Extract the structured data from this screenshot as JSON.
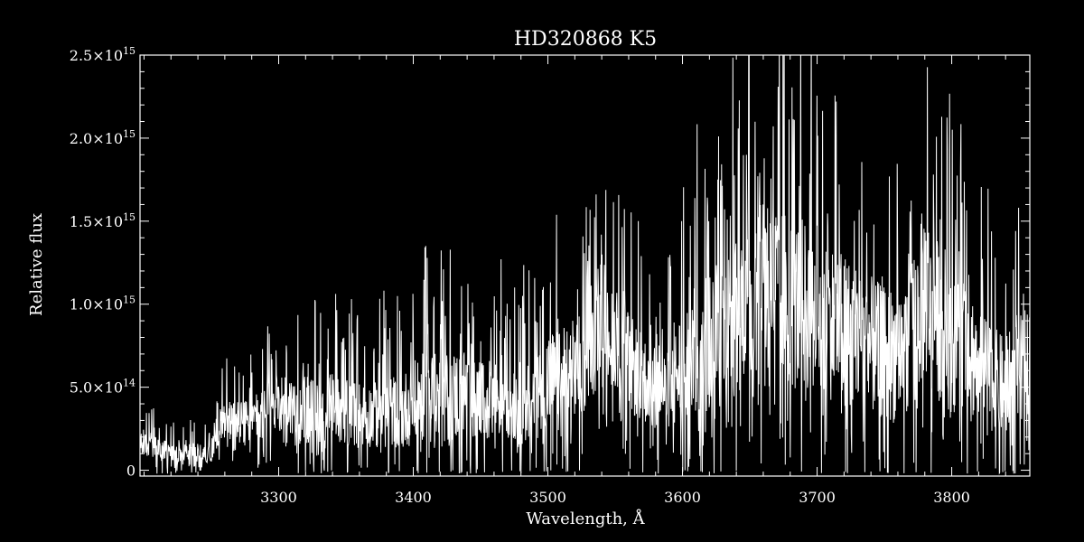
{
  "chart_data": {
    "type": "line",
    "title": "HD320868  K5",
    "xlabel": "Wavelength, Å",
    "ylabel": "Relative flux",
    "xlim": [
      3197,
      3858
    ],
    "ylim": [
      -35000000000000.0,
      2500000000000000.0
    ],
    "x_ticks": [
      {
        "value": 3300,
        "label": "3300"
      },
      {
        "value": 3400,
        "label": "3400"
      },
      {
        "value": 3500,
        "label": "3500"
      },
      {
        "value": 3600,
        "label": "3600"
      },
      {
        "value": 3700,
        "label": "3700"
      },
      {
        "value": 3800,
        "label": "3800"
      }
    ],
    "y_ticks": [
      {
        "value": 0,
        "mantissa": "0",
        "exp": ""
      },
      {
        "value": 500000000000000.0,
        "mantissa": "5.0×10",
        "exp": "14"
      },
      {
        "value": 1000000000000000.0,
        "mantissa": "1.0×10",
        "exp": "15"
      },
      {
        "value": 1500000000000000.0,
        "mantissa": "1.5×10",
        "exp": "15"
      },
      {
        "value": 2000000000000000.0,
        "mantissa": "2.0×10",
        "exp": "15"
      },
      {
        "value": 2500000000000000.0,
        "mantissa": "2.5×10",
        "exp": "15"
      }
    ],
    "grid": false,
    "legend": "none",
    "line_color": "#ffffff",
    "background": "#000000",
    "series": [
      {
        "x": [
          3200,
          3210,
          3220,
          3230,
          3240,
          3250,
          3255,
          3260,
          3270,
          3280,
          3290,
          3300,
          3310,
          3320,
          3330,
          3340,
          3350,
          3360,
          3370,
          3380,
          3390,
          3400,
          3410,
          3420,
          3430,
          3440,
          3450,
          3460,
          3470,
          3480,
          3490,
          3500,
          3510,
          3520,
          3530,
          3540,
          3550,
          3560,
          3570,
          3580,
          3590,
          3600,
          3610,
          3620,
          3630,
          3640,
          3650,
          3660,
          3670,
          3680,
          3690,
          3700,
          3710,
          3720,
          3730,
          3740,
          3750,
          3760,
          3770,
          3780,
          3790,
          3800,
          3810,
          3820,
          3830,
          3840,
          3850,
          3858
        ],
        "y": [
          150000000000000.0,
          130000000000000.0,
          100000000000000.0,
          110000000000000.0,
          100000000000000.0,
          100000000000000.0,
          250000000000000.0,
          320000000000000.0,
          300000000000000.0,
          300000000000000.0,
          350000000000000.0,
          420000000000000.0,
          380000000000000.0,
          360000000000000.0,
          350000000000000.0,
          380000000000000.0,
          360000000000000.0,
          340000000000000.0,
          330000000000000.0,
          360000000000000.0,
          350000000000000.0,
          400000000000000.0,
          450000000000000.0,
          420000000000000.0,
          450000000000000.0,
          480000000000000.0,
          400000000000000.0,
          430000000000000.0,
          460000000000000.0,
          400000000000000.0,
          440000000000000.0,
          550000000000000.0,
          500000000000000.0,
          600000000000000.0,
          650000000000000.0,
          850000000000000.0,
          800000000000000.0,
          650000000000000.0,
          550000000000000.0,
          500000000000000.0,
          450000000000000.0,
          650000000000000.0,
          700000000000000.0,
          800000000000000.0,
          850000000000000.0,
          950000000000000.0,
          1120000000000000.0,
          1250000000000000.0,
          1100000000000000.0,
          1000000000000000.0,
          1000000000000000.0,
          950000000000000.0,
          900000000000000.0,
          850000000000000.0,
          800000000000000.0,
          750000000000000.0,
          700000000000000.0,
          700000000000000.0,
          800000000000000.0,
          1100000000000000.0,
          900000000000000.0,
          800000000000000.0,
          750000000000000.0,
          650000000000000.0,
          550000000000000.0,
          500000000000000.0,
          600000000000000.0,
          650000000000000.0
        ],
        "amp": [
          120000000000000.0,
          120000000000000.0,
          100000000000000.0,
          100000000000000.0,
          100000000000000.0,
          80000000000000.0,
          180000000000000.0,
          200000000000000.0,
          200000000000000.0,
          220000000000000.0,
          260000000000000.0,
          300000000000000.0,
          320000000000000.0,
          340000000000000.0,
          340000000000000.0,
          360000000000000.0,
          360000000000000.0,
          340000000000000.0,
          320000000000000.0,
          380000000000000.0,
          360000000000000.0,
          420000000000000.0,
          460000000000000.0,
          460000000000000.0,
          460000000000000.0,
          440000000000000.0,
          400000000000000.0,
          420000000000000.0,
          440000000000000.0,
          420000000000000.0,
          460000000000000.0,
          500000000000000.0,
          560000000000000.0,
          540000000000000.0,
          500000000000000.0,
          440000000000000.0,
          460000000000000.0,
          500000000000000.0,
          460000000000000.0,
          420000000000000.0,
          440000000000000.0,
          600000000000000.0,
          700000000000000.0,
          740000000000000.0,
          780000000000000.0,
          840000000000000.0,
          900000000000000.0,
          920000000000000.0,
          900000000000000.0,
          900000000000000.0,
          860000000000000.0,
          840000000000000.0,
          800000000000000.0,
          760000000000000.0,
          740000000000000.0,
          700000000000000.0,
          680000000000000.0,
          700000000000000.0,
          760000000000000.0,
          900000000000000.0,
          800000000000000.0,
          760000000000000.0,
          700000000000000.0,
          620000000000000.0,
          540000000000000.0,
          500000000000000.0,
          560000000000000.0,
          560000000000000.0
        ]
      }
    ]
  }
}
